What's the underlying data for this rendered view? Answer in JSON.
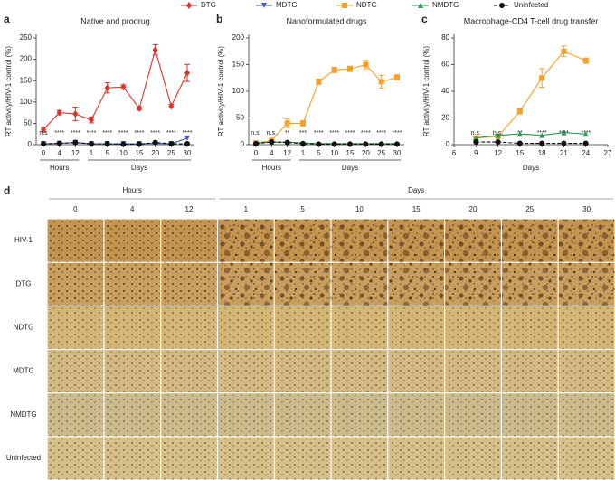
{
  "chart_data": [
    {
      "type": "line",
      "panel_label": "a",
      "title": "Native and prodrug",
      "ylabel": "RT activity/HIV-1 control (%)",
      "categories": [
        "0",
        "4",
        "12",
        "1",
        "5",
        "10",
        "15",
        "20",
        "25",
        "30"
      ],
      "category_groups": [
        "Hours",
        "Hours",
        "Hours",
        "Days",
        "Days",
        "Days",
        "Days",
        "Days",
        "Days",
        "Days"
      ],
      "ylim": [
        0,
        250
      ],
      "yticks": [
        0,
        50,
        100,
        150,
        200,
        250
      ],
      "annotations": [
        "n.s",
        "****",
        "****",
        "****",
        "****",
        "****",
        "****",
        "****",
        "****",
        "****"
      ],
      "series": [
        {
          "name": "DTG",
          "color": "#d9362b",
          "marker": "diamond",
          "values": [
            35,
            75,
            72,
            58,
            133,
            135,
            85,
            222,
            90,
            168
          ],
          "errors": [
            5,
            5,
            16,
            7,
            12,
            5,
            4,
            12,
            4,
            20
          ]
        },
        {
          "name": "MDTG",
          "color": "#3f5fb5",
          "marker": "triangle-down",
          "values": [
            2,
            3,
            5,
            2,
            2,
            2,
            2,
            3,
            2,
            15
          ]
        },
        {
          "name": "Uninfected",
          "color": "#111111",
          "marker": "circle",
          "line_style": "dashed",
          "values": [
            2,
            3,
            5,
            2,
            2,
            1,
            1,
            5,
            2,
            2
          ]
        }
      ]
    },
    {
      "type": "line",
      "panel_label": "b",
      "title": "Nanoformulated drugs",
      "ylabel": "RT activity/HIV-1 control (%)",
      "categories": [
        "0",
        "4",
        "12",
        "1",
        "5",
        "10",
        "15",
        "20",
        "25",
        "30"
      ],
      "category_groups": [
        "Hours",
        "Hours",
        "Hours",
        "Days",
        "Days",
        "Days",
        "Days",
        "Days",
        "Days",
        "Days"
      ],
      "ylim": [
        0,
        200
      ],
      "yticks": [
        0,
        50,
        100,
        150,
        200
      ],
      "annotations": [
        "n.s.",
        "n.s.",
        "**",
        "***",
        "****",
        "****",
        "****",
        "****",
        "****",
        "****"
      ],
      "series": [
        {
          "name": "NDTG",
          "color": "#f5a02c",
          "marker": "square",
          "values": [
            3,
            8,
            40,
            40,
            118,
            140,
            142,
            150,
            118,
            126
          ],
          "errors": [
            2,
            2,
            8,
            5,
            5,
            5,
            5,
            8,
            12,
            5
          ]
        },
        {
          "name": "NMDTG",
          "color": "#2a9a50",
          "marker": "triangle-up",
          "values": [
            3,
            5,
            5,
            3,
            2,
            2,
            2,
            2,
            2,
            2
          ]
        },
        {
          "name": "Uninfected",
          "color": "#111111",
          "marker": "circle",
          "line_style": "dashed",
          "values": [
            2,
            5,
            4,
            2,
            1,
            1,
            1,
            1,
            1,
            1
          ]
        }
      ]
    },
    {
      "type": "line",
      "panel_label": "c",
      "title": "Macrophage-CD4 T-cell drug transfer",
      "ylabel": "RT activity/HIV-1 control (%)",
      "xlabel": "Days",
      "x": [
        9,
        12,
        15,
        18,
        21,
        24
      ],
      "xlim": [
        6,
        27
      ],
      "xticks": [
        6,
        9,
        12,
        15,
        18,
        21,
        24,
        27
      ],
      "ylim": [
        0,
        80
      ],
      "yticks": [
        0,
        20,
        40,
        60,
        80
      ],
      "annotations": [
        "n.s.",
        "n.s.",
        "**",
        "****",
        "****",
        "****"
      ],
      "series": [
        {
          "name": "NDTG",
          "color": "#f5a02c",
          "marker": "square",
          "values": [
            5,
            6,
            25,
            50,
            70,
            63
          ],
          "errors": [
            1,
            1,
            2,
            7,
            4,
            2
          ]
        },
        {
          "name": "NMDTG",
          "color": "#2a9a50",
          "marker": "triangle-up",
          "values": [
            5,
            7,
            8,
            7,
            9,
            8
          ]
        },
        {
          "name": "Uninfected",
          "color": "#111111",
          "marker": "circle",
          "line_style": "dashed",
          "values": [
            2,
            2,
            1,
            1,
            1,
            1
          ]
        }
      ]
    }
  ],
  "micrographs": {
    "panel_label": "d",
    "column_groups": [
      {
        "label": "Hours",
        "columns": [
          "0",
          "4",
          "12"
        ]
      },
      {
        "label": "Days",
        "columns": [
          "1",
          "5",
          "10",
          "15",
          "20",
          "25",
          "30"
        ]
      }
    ],
    "rows": [
      "HIV-1",
      "DTG",
      "NDTG",
      "MDTG",
      "NMDTG",
      "Uninfected"
    ]
  }
}
